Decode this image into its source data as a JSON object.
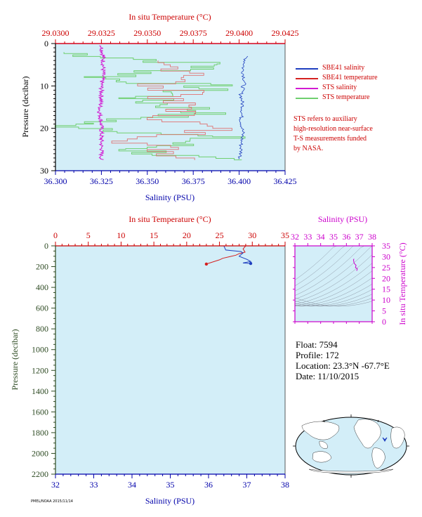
{
  "top_chart": {
    "top_axis_title": "In situ Temperature (°C)",
    "bottom_axis_title": "Salinity (PSU)",
    "left_axis_title": "Pressure (decibar)",
    "top_ticks": [
      "29.0300",
      "29.0325",
      "29.0350",
      "29.0375",
      "29.0400",
      "29.0425"
    ],
    "bottom_ticks": [
      "36.300",
      "36.325",
      "36.350",
      "36.375",
      "36.400",
      "36.425"
    ],
    "left_ticks": [
      "0",
      "10",
      "20",
      "30"
    ]
  },
  "legend": [
    {
      "label": "SBE41 salinity",
      "color": "#1f3fbf"
    },
    {
      "label": "SBE41 temperature",
      "color": "#d42020"
    },
    {
      "label": "STS salinity",
      "color": "#d21bd2"
    },
    {
      "label": "STS temperature",
      "color": "#6fcf6f"
    }
  ],
  "note_lines": [
    "STS refers to auxiliary",
    "high-resolution near-surface",
    "T-S measurements funded",
    "by NASA."
  ],
  "bottom_chart": {
    "top_axis_title": "In situ Temperature (°C)",
    "bottom_axis_title": "Salinity (PSU)",
    "left_axis_title": "Pressure (decibar)",
    "top_ticks": [
      "0",
      "5",
      "10",
      "15",
      "20",
      "25",
      "30",
      "35"
    ],
    "bottom_ticks": [
      "32",
      "33",
      "34",
      "35",
      "36",
      "37",
      "38"
    ],
    "left_ticks": [
      "0",
      "200",
      "400",
      "600",
      "800",
      "1000",
      "1200",
      "1400",
      "1600",
      "1800",
      "2000",
      "2200"
    ]
  },
  "ts_inset": {
    "top_axis_title": "Salinity (PSU)",
    "right_axis_title": "In situ Temperature (°C)",
    "top_ticks": [
      "32",
      "33",
      "34",
      "35",
      "36",
      "37",
      "38"
    ],
    "right_ticks": [
      "0",
      "5",
      "10",
      "15",
      "20",
      "25",
      "30",
      "35"
    ]
  },
  "info": {
    "float": "Float:  7594",
    "profile": "Profile:  172",
    "location": "Location:  23.3°N  -67.7°E",
    "date": "Date:  11/10/2015"
  },
  "credit": "PMEL/NOAA 2015/11/14",
  "colors": {
    "plot_bg": "#d3eef8",
    "temperature_axis": "#cc0000",
    "salinity_axis": "#0000aa",
    "pressure_axis": "#2d4a22",
    "inset_axis": "#cc00cc"
  },
  "chart_data": [
    {
      "type": "line",
      "x_axis_top": {
        "label": "In situ Temperature (°C)",
        "range": [
          29.03,
          29.0425
        ]
      },
      "x_axis_bottom": {
        "label": "Salinity (PSU)",
        "range": [
          36.3,
          36.425
        ]
      },
      "y_axis": {
        "label": "Pressure (decibar)",
        "range": [
          0,
          30
        ],
        "inverted": true
      },
      "series": [
        {
          "name": "SBE41 salinity",
          "x": [
            36.404,
            36.402,
            36.403,
            36.401,
            36.402,
            36.401,
            36.402,
            36.401,
            36.401,
            36.4
          ],
          "y": [
            3,
            6,
            9,
            12,
            15,
            18,
            21,
            24,
            26,
            27.5
          ]
        },
        {
          "name": "SBE41 temperature",
          "x": [
            29.0345,
            29.0385,
            29.0345,
            29.0385,
            29.0355,
            29.0375,
            29.036,
            29.0385,
            29.0345,
            29.038
          ],
          "y": [
            4,
            7,
            10,
            11,
            13,
            15,
            17,
            20,
            23,
            27.5
          ]
        },
        {
          "name": "STS salinity",
          "x": [
            36.325,
            36.326,
            36.326,
            36.325,
            36.325,
            36.324,
            36.325,
            36.325,
            36.325,
            36.325
          ],
          "y": [
            0.5,
            3,
            7,
            10,
            13,
            16,
            19,
            22,
            25,
            27.5
          ]
        },
        {
          "name": "STS temperature",
          "x": [
            29.0305,
            29.039,
            29.0325,
            29.0385,
            29.0345,
            29.0385,
            29.0305,
            29.0385,
            29.0345,
            29.0385
          ],
          "y": [
            2,
            5,
            8,
            10,
            13,
            16,
            19,
            22,
            25,
            27.5
          ]
        }
      ]
    },
    {
      "type": "line",
      "x_axis_top": {
        "label": "In situ Temperature (°C)",
        "range": [
          0,
          35
        ]
      },
      "x_axis_bottom": {
        "label": "Salinity (PSU)",
        "range": [
          32,
          38
        ]
      },
      "y_axis": {
        "label": "Pressure (decibar)",
        "range": [
          0,
          2200
        ],
        "inverted": true
      },
      "series": [
        {
          "name": "Temperature",
          "x": [
            29.0,
            28.6,
            28.9,
            28.0,
            27.5,
            26.5,
            25.5,
            25.0,
            24.0,
            23.0
          ],
          "y": [
            0,
            30,
            60,
            75,
            90,
            105,
            120,
            135,
            155,
            175
          ]
        },
        {
          "name": "Salinity",
          "x": [
            36.4,
            36.45,
            36.85,
            36.9,
            36.8,
            37.0,
            37.1,
            36.9,
            37.1
          ],
          "y": [
            0,
            40,
            55,
            70,
            100,
            130,
            150,
            165,
            170
          ]
        }
      ]
    },
    {
      "type": "scatter",
      "x_axis": {
        "label": "Salinity (PSU)",
        "range": [
          32,
          38
        ]
      },
      "y_axis": {
        "label": "In situ Temperature (°C)",
        "range": [
          0,
          35
        ]
      },
      "series": [
        {
          "x": [
            36.6,
            36.55,
            36.6,
            36.75,
            36.7,
            36.85,
            36.8
          ],
          "y": [
            29.0,
            28.6,
            27.0,
            26.0,
            25.0,
            24.5,
            23.5
          ]
        }
      ]
    }
  ]
}
